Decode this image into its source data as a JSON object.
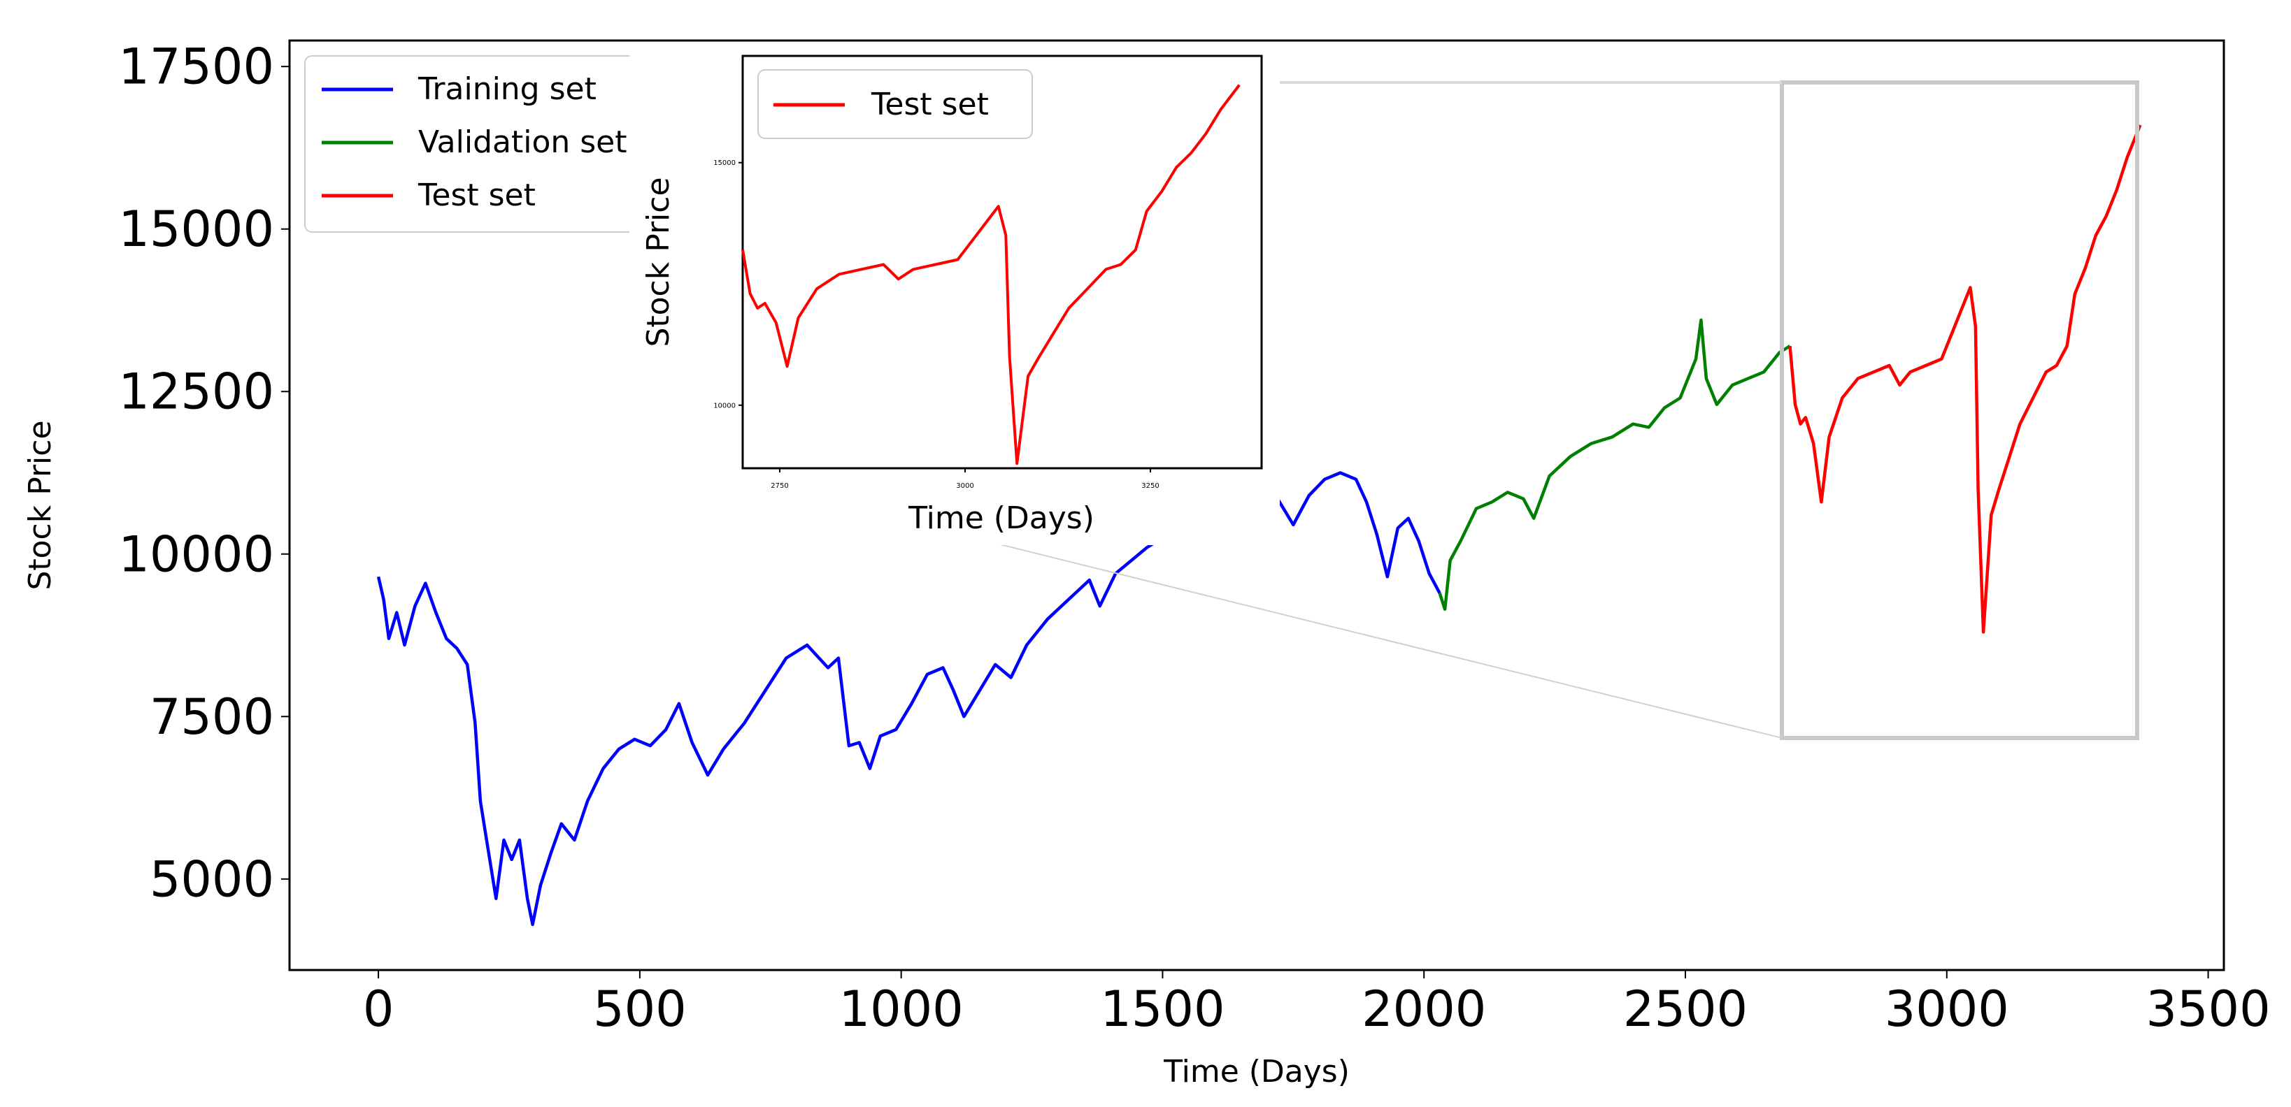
{
  "chart_data": [
    {
      "type": "line",
      "xlabel": "Time (Days)",
      "ylabel": "Stock Price",
      "xlim": [
        -170,
        3530
      ],
      "ylim": [
        3600,
        17900
      ],
      "xticks": [
        0,
        500,
        1000,
        1500,
        2000,
        2500,
        3000,
        3500
      ],
      "xtick_labels": [
        "0",
        "500",
        "1000",
        "1500",
        "2000",
        "2500",
        "3000",
        "3500"
      ],
      "yticks": [
        5000,
        7500,
        10000,
        12500,
        15000,
        17500
      ],
      "ytick_labels": [
        "5000",
        "7500",
        "10000",
        "12500",
        "15000",
        "17500"
      ],
      "grid": false,
      "legend_position": "top-left",
      "series": [
        {
          "name": "Training set",
          "color": "#0000ff",
          "points": [
            [
              0,
              9650
            ],
            [
              10,
              9300
            ],
            [
              20,
              8700
            ],
            [
              35,
              9100
            ],
            [
              50,
              8600
            ],
            [
              70,
              9200
            ],
            [
              90,
              9550
            ],
            [
              110,
              9100
            ],
            [
              130,
              8700
            ],
            [
              150,
              8550
            ],
            [
              170,
              8300
            ],
            [
              185,
              7400
            ],
            [
              195,
              6200
            ],
            [
              205,
              5700
            ],
            [
              215,
              5200
            ],
            [
              225,
              4700
            ],
            [
              240,
              5600
            ],
            [
              255,
              5300
            ],
            [
              270,
              5600
            ],
            [
              285,
              4700
            ],
            [
              295,
              4300
            ],
            [
              310,
              4900
            ],
            [
              330,
              5400
            ],
            [
              350,
              5850
            ],
            [
              375,
              5600
            ],
            [
              400,
              6200
            ],
            [
              430,
              6700
            ],
            [
              460,
              7000
            ],
            [
              490,
              7150
            ],
            [
              520,
              7050
            ],
            [
              550,
              7300
            ],
            [
              575,
              7700
            ],
            [
              600,
              7100
            ],
            [
              630,
              6600
            ],
            [
              660,
              7000
            ],
            [
              700,
              7400
            ],
            [
              740,
              7900
            ],
            [
              780,
              8400
            ],
            [
              820,
              8600
            ],
            [
              860,
              8250
            ],
            [
              880,
              8400
            ],
            [
              900,
              7050
            ],
            [
              920,
              7100
            ],
            [
              940,
              6700
            ],
            [
              960,
              7200
            ],
            [
              990,
              7300
            ],
            [
              1020,
              7700
            ],
            [
              1050,
              8150
            ],
            [
              1080,
              8250
            ],
            [
              1100,
              7900
            ],
            [
              1120,
              7500
            ],
            [
              1150,
              7900
            ],
            [
              1180,
              8300
            ],
            [
              1210,
              8100
            ],
            [
              1240,
              8600
            ],
            [
              1280,
              9000
            ],
            [
              1320,
              9300
            ],
            [
              1360,
              9600
            ],
            [
              1380,
              9200
            ],
            [
              1410,
              9700
            ],
            [
              1440,
              9900
            ],
            [
              1470,
              10100
            ],
            [
              1500,
              10250
            ],
            [
              1540,
              10500
            ],
            [
              1570,
              10650
            ],
            [
              1600,
              10500
            ],
            [
              1630,
              10800
            ],
            [
              1660,
              11050
            ],
            [
              1690,
              10500
            ],
            [
              1720,
              10850
            ],
            [
              1750,
              10450
            ],
            [
              1780,
              10900
            ],
            [
              1810,
              11150
            ],
            [
              1840,
              11250
            ],
            [
              1870,
              11150
            ],
            [
              1890,
              10800
            ],
            [
              1910,
              10300
            ],
            [
              1930,
              9650
            ],
            [
              1950,
              10400
            ],
            [
              1970,
              10550
            ],
            [
              1990,
              10200
            ],
            [
              2010,
              9700
            ],
            [
              2030,
              9400
            ]
          ],
          "group": "main"
        },
        {
          "name": "Validation set",
          "color": "#008000",
          "points": [
            [
              2030,
              9400
            ],
            [
              2040,
              9150
            ],
            [
              2050,
              9900
            ],
            [
              2070,
              10200
            ],
            [
              2100,
              10700
            ],
            [
              2130,
              10800
            ],
            [
              2160,
              10950
            ],
            [
              2190,
              10850
            ],
            [
              2210,
              10550
            ],
            [
              2240,
              11200
            ],
            [
              2280,
              11500
            ],
            [
              2320,
              11700
            ],
            [
              2360,
              11800
            ],
            [
              2400,
              12000
            ],
            [
              2430,
              11950
            ],
            [
              2460,
              12250
            ],
            [
              2490,
              12400
            ],
            [
              2520,
              13000
            ],
            [
              2530,
              13600
            ],
            [
              2540,
              12700
            ],
            [
              2560,
              12300
            ],
            [
              2590,
              12600
            ],
            [
              2620,
              12700
            ],
            [
              2650,
              12800
            ],
            [
              2680,
              13100
            ],
            [
              2700,
              13200
            ]
          ],
          "group": "main"
        },
        {
          "name": "Test set",
          "color": "#ff0000",
          "points": [
            [
              2700,
              13200
            ],
            [
              2710,
              12300
            ],
            [
              2720,
              12000
            ],
            [
              2730,
              12100
            ],
            [
              2745,
              11700
            ],
            [
              2760,
              10800
            ],
            [
              2775,
              11800
            ],
            [
              2800,
              12400
            ],
            [
              2830,
              12700
            ],
            [
              2860,
              12800
            ],
            [
              2890,
              12900
            ],
            [
              2910,
              12600
            ],
            [
              2930,
              12800
            ],
            [
              2960,
              12900
            ],
            [
              2990,
              13000
            ],
            [
              3010,
              13400
            ],
            [
              3030,
              13800
            ],
            [
              3045,
              14100
            ],
            [
              3055,
              13500
            ],
            [
              3060,
              11000
            ],
            [
              3070,
              8800
            ],
            [
              3085,
              10600
            ],
            [
              3100,
              11000
            ],
            [
              3120,
              11500
            ],
            [
              3140,
              12000
            ],
            [
              3165,
              12400
            ],
            [
              3190,
              12800
            ],
            [
              3210,
              12900
            ],
            [
              3230,
              13200
            ],
            [
              3245,
              14000
            ],
            [
              3265,
              14400
            ],
            [
              3285,
              14900
            ],
            [
              3305,
              15200
            ],
            [
              3325,
              15600
            ],
            [
              3345,
              16100
            ],
            [
              3370,
              16600
            ]
          ],
          "group": "main"
        }
      ]
    },
    {
      "type": "line",
      "xlabel": "Time (Days)",
      "ylabel": "Stock Price",
      "xlim": [
        2700,
        3400
      ],
      "ylim": [
        8700,
        17200
      ],
      "xticks": [
        2750,
        3000,
        3250
      ],
      "xtick_labels": [
        "2750",
        "3000",
        "3250"
      ],
      "yticks": [
        10000,
        15000
      ],
      "ytick_labels": [
        "10000",
        "15000"
      ],
      "legend_position": "top-left",
      "series": [
        {
          "name": "Test set",
          "color": "#ff0000",
          "points": [
            [
              2700,
              13200
            ],
            [
              2710,
              12300
            ],
            [
              2720,
              12000
            ],
            [
              2730,
              12100
            ],
            [
              2745,
              11700
            ],
            [
              2760,
              10800
            ],
            [
              2775,
              11800
            ],
            [
              2800,
              12400
            ],
            [
              2830,
              12700
            ],
            [
              2860,
              12800
            ],
            [
              2890,
              12900
            ],
            [
              2910,
              12600
            ],
            [
              2930,
              12800
            ],
            [
              2960,
              12900
            ],
            [
              2990,
              13000
            ],
            [
              3010,
              13400
            ],
            [
              3030,
              13800
            ],
            [
              3045,
              14100
            ],
            [
              3055,
              13500
            ],
            [
              3060,
              11000
            ],
            [
              3070,
              8800
            ],
            [
              3085,
              10600
            ],
            [
              3100,
              11000
            ],
            [
              3120,
              11500
            ],
            [
              3140,
              12000
            ],
            [
              3165,
              12400
            ],
            [
              3190,
              12800
            ],
            [
              3210,
              12900
            ],
            [
              3230,
              13200
            ],
            [
              3245,
              14000
            ],
            [
              3265,
              14400
            ],
            [
              3285,
              14900
            ],
            [
              3305,
              15200
            ],
            [
              3325,
              15600
            ],
            [
              3345,
              16100
            ],
            [
              3370,
              16600
            ]
          ]
        }
      ]
    }
  ]
}
